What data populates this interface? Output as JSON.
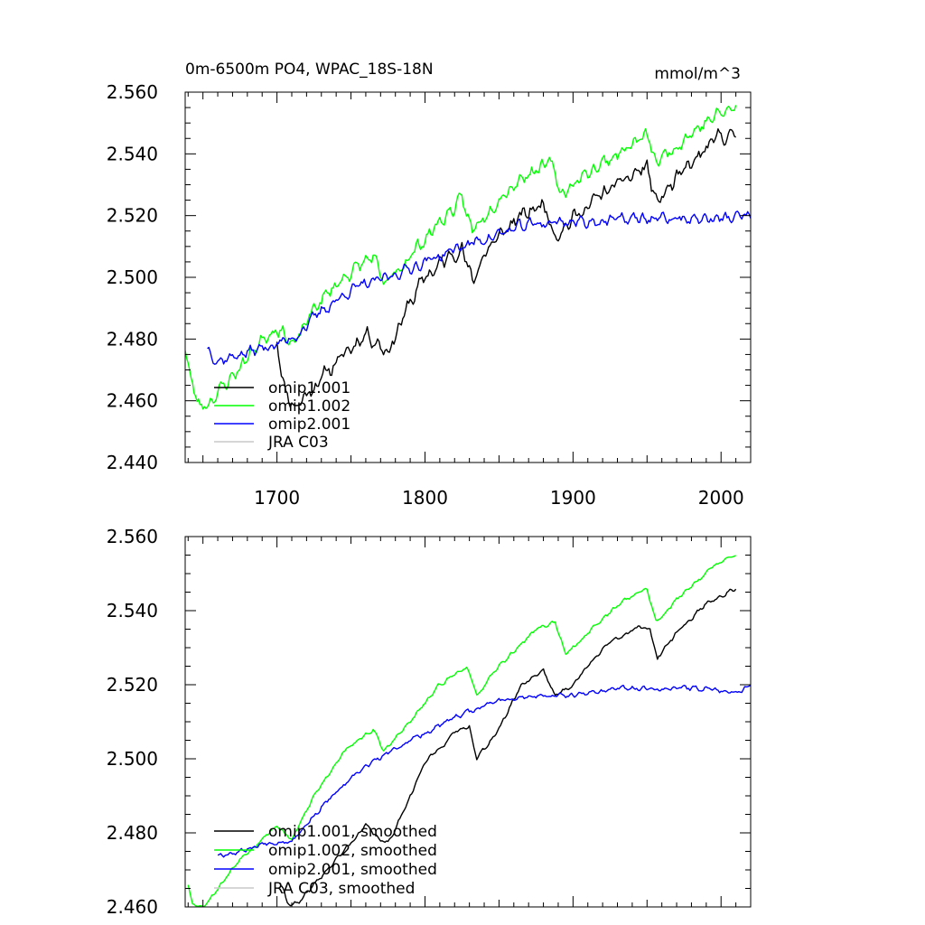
{
  "chart_data": [
    {
      "type": "line",
      "title": "0m-6500m PO4, WPAC_18S-18N",
      "units": "mmol/m^3",
      "xlim": [
        1638,
        2020
      ],
      "ylim": [
        2.44,
        2.56
      ],
      "x_major_ticks": [
        1700,
        1800,
        1900,
        2000
      ],
      "x_tick_labels": [
        "1700",
        "1800",
        "1900",
        "2000"
      ],
      "y_major_ticks": [
        2.44,
        2.46,
        2.48,
        2.5,
        2.52,
        2.54,
        2.56
      ],
      "y_tick_labels": [
        "2.440",
        "2.460",
        "2.480",
        "2.500",
        "2.520",
        "2.540",
        "2.560"
      ],
      "legend": [
        "omip1.001",
        "omip1.002",
        "omip2.001",
        "JRA C03"
      ],
      "series": [
        {
          "name": "omip1.001",
          "color": "#000000",
          "noise": 0.0035,
          "seed": 11,
          "points": [
            [
              1700,
              2.48
            ],
            [
              1705,
              2.464
            ],
            [
              1712,
              2.458
            ],
            [
              1720,
              2.462
            ],
            [
              1735,
              2.47
            ],
            [
              1760,
              2.482
            ],
            [
              1775,
              2.476
            ],
            [
              1790,
              2.492
            ],
            [
              1800,
              2.5
            ],
            [
              1815,
              2.506
            ],
            [
              1825,
              2.51
            ],
            [
              1832,
              2.498
            ],
            [
              1840,
              2.508
            ],
            [
              1860,
              2.518
            ],
            [
              1880,
              2.524
            ],
            [
              1888,
              2.514
            ],
            [
              1900,
              2.519
            ],
            [
              1920,
              2.527
            ],
            [
              1940,
              2.533
            ],
            [
              1950,
              2.536
            ],
            [
              1956,
              2.524
            ],
            [
              1965,
              2.529
            ],
            [
              1985,
              2.539
            ],
            [
              2000,
              2.546
            ],
            [
              2010,
              2.546
            ]
          ]
        },
        {
          "name": "omip1.002",
          "color": "#00ff00",
          "noise": 0.003,
          "seed": 23,
          "points": [
            [
              1638,
              2.478
            ],
            [
              1642,
              2.466
            ],
            [
              1648,
              2.458
            ],
            [
              1655,
              2.46
            ],
            [
              1670,
              2.468
            ],
            [
              1690,
              2.48
            ],
            [
              1700,
              2.484
            ],
            [
              1712,
              2.478
            ],
            [
              1725,
              2.49
            ],
            [
              1745,
              2.5
            ],
            [
              1765,
              2.507
            ],
            [
              1772,
              2.497
            ],
            [
              1790,
              2.507
            ],
            [
              1810,
              2.518
            ],
            [
              1825,
              2.525
            ],
            [
              1832,
              2.515
            ],
            [
              1850,
              2.526
            ],
            [
              1870,
              2.534
            ],
            [
              1885,
              2.537
            ],
            [
              1892,
              2.527
            ],
            [
              1910,
              2.534
            ],
            [
              1930,
              2.54
            ],
            [
              1950,
              2.546
            ],
            [
              1956,
              2.537
            ],
            [
              1975,
              2.545
            ],
            [
              1995,
              2.552
            ],
            [
              2010,
              2.555
            ]
          ]
        },
        {
          "name": "omip2.001",
          "color": "#0000ff",
          "noise": 0.0025,
          "seed": 37,
          "points": [
            [
              1653,
              2.477
            ],
            [
              1660,
              2.473
            ],
            [
              1675,
              2.475
            ],
            [
              1690,
              2.477
            ],
            [
              1710,
              2.48
            ],
            [
              1730,
              2.489
            ],
            [
              1750,
              2.496
            ],
            [
              1775,
              2.5
            ],
            [
              1800,
              2.505
            ],
            [
              1825,
              2.51
            ],
            [
              1850,
              2.514
            ],
            [
              1870,
              2.517
            ],
            [
              1890,
              2.518
            ],
            [
              1910,
              2.518
            ],
            [
              1940,
              2.519
            ],
            [
              1970,
              2.519
            ],
            [
              2000,
              2.519
            ],
            [
              2020,
              2.52
            ]
          ]
        },
        {
          "name": "JRA C03",
          "color": "#c8c8c8",
          "noise": 0,
          "seed": 0,
          "points": []
        }
      ]
    },
    {
      "type": "line",
      "title": "",
      "units": "",
      "xlim": [
        1638,
        2020
      ],
      "ylim": [
        2.46,
        2.56
      ],
      "x_major_ticks": [
        1700,
        1800,
        1900,
        2000
      ],
      "x_tick_labels": [],
      "y_major_ticks": [
        2.46,
        2.48,
        2.5,
        2.52,
        2.54,
        2.56
      ],
      "y_tick_labels": [
        "2.460",
        "2.480",
        "2.500",
        "2.520",
        "2.540",
        "2.560"
      ],
      "legend": [
        "omip1.001, smoothed",
        "omip1.002, smoothed",
        "omip2.001, smoothed",
        "JRA C03, smoothed"
      ],
      "series": [
        {
          "name": "omip1.001, smoothed",
          "color": "#000000",
          "noise": 0.0008,
          "seed": 41,
          "points": [
            [
              1703,
              2.466
            ],
            [
              1707,
              2.461
            ],
            [
              1715,
              2.461
            ],
            [
              1725,
              2.466
            ],
            [
              1745,
              2.475
            ],
            [
              1760,
              2.482
            ],
            [
              1767,
              2.479
            ],
            [
              1775,
              2.477
            ],
            [
              1790,
              2.49
            ],
            [
              1800,
              2.499
            ],
            [
              1820,
              2.507
            ],
            [
              1830,
              2.509
            ],
            [
              1835,
              2.5
            ],
            [
              1850,
              2.508
            ],
            [
              1865,
              2.52
            ],
            [
              1880,
              2.524
            ],
            [
              1888,
              2.517
            ],
            [
              1900,
              2.52
            ],
            [
              1920,
              2.53
            ],
            [
              1945,
              2.536
            ],
            [
              1952,
              2.535
            ],
            [
              1957,
              2.527
            ],
            [
              1970,
              2.534
            ],
            [
              1990,
              2.542
            ],
            [
              2010,
              2.546
            ]
          ]
        },
        {
          "name": "omip1.002, smoothed",
          "color": "#00ff00",
          "noise": 0.0007,
          "seed": 53,
          "points": [
            [
              1640,
              2.466
            ],
            [
              1643,
              2.461
            ],
            [
              1650,
              2.46
            ],
            [
              1660,
              2.465
            ],
            [
              1675,
              2.473
            ],
            [
              1700,
              2.482
            ],
            [
              1710,
              2.478
            ],
            [
              1725,
              2.49
            ],
            [
              1745,
              2.502
            ],
            [
              1765,
              2.508
            ],
            [
              1772,
              2.502
            ],
            [
              1790,
              2.51
            ],
            [
              1810,
              2.52
            ],
            [
              1828,
              2.525
            ],
            [
              1835,
              2.517
            ],
            [
              1850,
              2.525
            ],
            [
              1875,
              2.535
            ],
            [
              1888,
              2.537
            ],
            [
              1895,
              2.528
            ],
            [
              1915,
              2.536
            ],
            [
              1935,
              2.543
            ],
            [
              1950,
              2.546
            ],
            [
              1956,
              2.537
            ],
            [
              1975,
              2.545
            ],
            [
              1995,
              2.552
            ],
            [
              2010,
              2.555
            ]
          ]
        },
        {
          "name": "omip2.001, smoothed",
          "color": "#0000ff",
          "noise": 0.0009,
          "seed": 67,
          "points": [
            [
              1660,
              2.474
            ],
            [
              1675,
              2.475
            ],
            [
              1690,
              2.477
            ],
            [
              1710,
              2.478
            ],
            [
              1735,
              2.489
            ],
            [
              1760,
              2.498
            ],
            [
              1790,
              2.505
            ],
            [
              1820,
              2.511
            ],
            [
              1850,
              2.516
            ],
            [
              1880,
              2.517
            ],
            [
              1900,
              2.517
            ],
            [
              1930,
              2.519
            ],
            [
              1960,
              2.519
            ],
            [
              1990,
              2.519
            ],
            [
              2010,
              2.518
            ],
            [
              2020,
              2.52
            ]
          ]
        },
        {
          "name": "JRA C03, smoothed",
          "color": "#c8c8c8",
          "noise": 0,
          "seed": 0,
          "points": []
        }
      ]
    }
  ]
}
